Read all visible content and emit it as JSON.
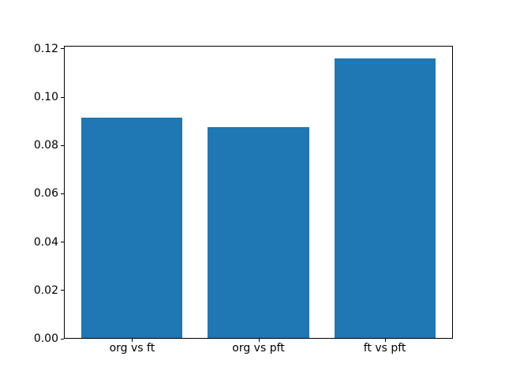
{
  "figure": {
    "background": "#ffffff",
    "title": ""
  },
  "chart_data": {
    "type": "bar",
    "categories": [
      "org vs ft",
      "org vs pft",
      "ft vs pft"
    ],
    "values": [
      0.0915,
      0.0875,
      0.116
    ],
    "title": "",
    "xlabel": "",
    "ylabel": "",
    "ylim": [
      0,
      0.1213
    ],
    "yticks": [
      0,
      0.02,
      0.04,
      0.06,
      0.08,
      0.1,
      0.12
    ],
    "ytick_labels": [
      "0.00",
      "0.02",
      "0.04",
      "0.06",
      "0.08",
      "0.10",
      "0.12"
    ],
    "bar_color": "#1f77b4",
    "bar_width_fraction": 0.8,
    "x_edge_margin": 0.54,
    "grid": false,
    "legend": null,
    "axis_color": "#000000",
    "tick_label_color": "#000000"
  }
}
